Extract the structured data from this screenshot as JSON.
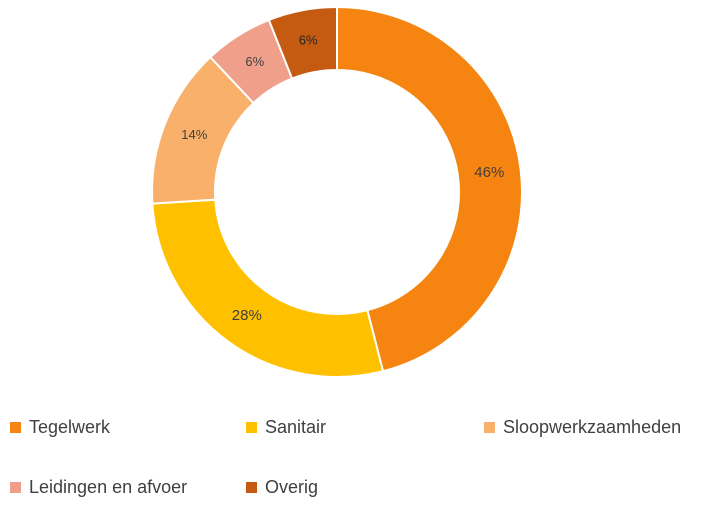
{
  "chart_data": {
    "type": "pie",
    "variant": "donut",
    "legend_position": "bottom",
    "categories": [
      "Tegelwerk",
      "Sanitair",
      "Sloopwerkzaamheden",
      "Leidingen en afvoer",
      "Overig"
    ],
    "values": [
      46,
      28,
      14,
      6,
      6
    ],
    "data_labels": [
      "46%",
      "28%",
      "14%",
      "6%",
      "6%"
    ],
    "colors": [
      "#F58410",
      "#FFC000",
      "#F8B06A",
      "#F0A08A",
      "#C55A11"
    ],
    "label_colors": [
      "#404040",
      "#404040",
      "#404040",
      "#404040",
      "#262626"
    ]
  }
}
